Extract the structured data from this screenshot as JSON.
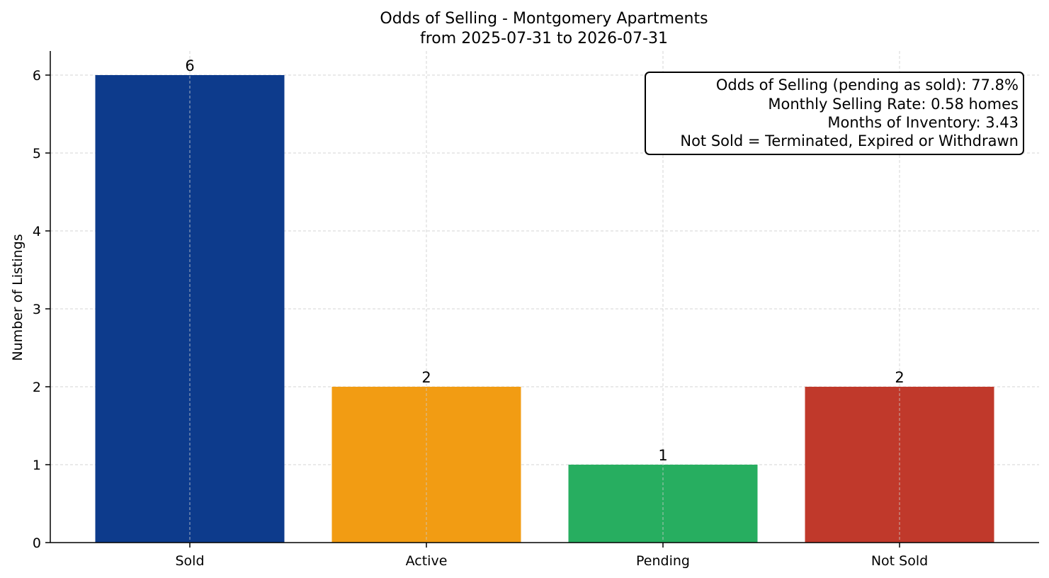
{
  "chart_data": {
    "type": "bar",
    "title": "Odds of Selling - Montgomery Apartments",
    "subtitle": "from 2025-07-31 to 2026-07-31",
    "xlabel": "",
    "ylabel": "Number of Listings",
    "categories": [
      "Sold",
      "Active",
      "Pending",
      "Not Sold"
    ],
    "values": [
      6,
      2,
      1,
      2
    ],
    "value_labels": [
      "6",
      "2",
      "1",
      "2"
    ],
    "colors": [
      "#0d3b8c",
      "#f29c13",
      "#27ae60",
      "#c0392b"
    ],
    "ylim": [
      0,
      6.3
    ],
    "yticks": [
      0,
      1,
      2,
      3,
      4,
      5,
      6
    ],
    "ytick_labels": [
      "0",
      "1",
      "2",
      "3",
      "4",
      "5",
      "6"
    ],
    "grid": true,
    "annotation_placement": "top-right",
    "annotation_lines": [
      "Odds of Selling (pending as sold): 77.8%",
      "Monthly Selling Rate: 0.58 homes",
      "Months of Inventory: 3.43",
      "Not Sold = Terminated, Expired or Withdrawn"
    ]
  }
}
